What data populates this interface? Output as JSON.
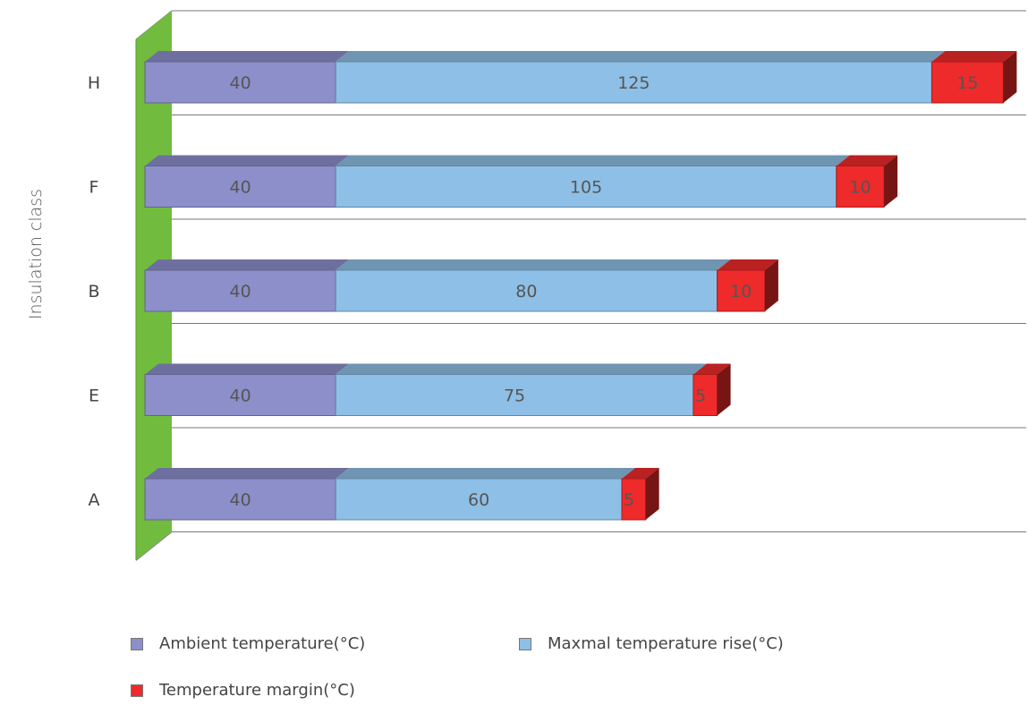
{
  "chart_data": {
    "type": "bar",
    "orientation": "horizontal",
    "stacked": true,
    "three_d": true,
    "categories": [
      "H",
      "F",
      "B",
      "E",
      "A"
    ],
    "series": [
      {
        "name": "Ambient temperature(°C)",
        "values": [
          40,
          40,
          40,
          40,
          40
        ],
        "color": "#8c8fca"
      },
      {
        "name": "Maxmal temperature rise(°C)",
        "values": [
          125,
          105,
          80,
          75,
          60
        ],
        "color": "#8ebfe6"
      },
      {
        "name": "Temperature margin(°C)",
        "values": [
          15,
          10,
          10,
          5,
          5
        ],
        "color": "#ee2a2a"
      }
    ],
    "ylabel": "Insulation class",
    "xlabel": "",
    "xlim": [
      0,
      180
    ],
    "grid": true,
    "legend_position": "bottom",
    "data_labels": true,
    "wall_color": "#71bc3f"
  }
}
